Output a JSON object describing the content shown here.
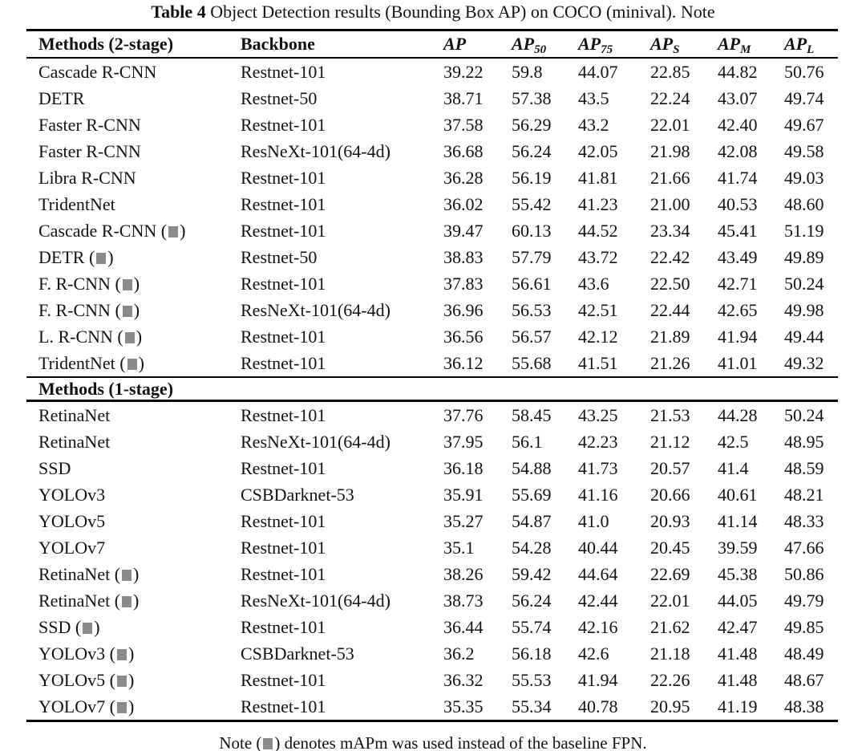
{
  "caption": {
    "label": "Table 4",
    "text": " Object Detection results (Bounding Box AP) on COCO (minival). Note"
  },
  "header": {
    "methods_label": "Methods (2-stage)",
    "backbone_label": "Backbone",
    "metrics": [
      {
        "base": "AP",
        "sub": ""
      },
      {
        "base": "AP",
        "sub": "50"
      },
      {
        "base": "AP",
        "sub": "75"
      },
      {
        "base": "AP",
        "sub": "S"
      },
      {
        "base": "AP",
        "sub": "M"
      },
      {
        "base": "AP",
        "sub": "L"
      }
    ]
  },
  "marker_color": "#8a8a8a",
  "sections": [
    {
      "title": "",
      "rows": [
        {
          "method": "Cascade R-CNN",
          "marked": false,
          "backbone": "Restnet-101",
          "values": [
            "39.22",
            "59.8",
            "44.07",
            "22.85",
            "44.82",
            "50.76"
          ]
        },
        {
          "method": "DETR",
          "marked": false,
          "backbone": "Restnet-50",
          "values": [
            "38.71",
            "57.38",
            "43.5",
            "22.24",
            "43.07",
            "49.74"
          ]
        },
        {
          "method": "Faster R-CNN",
          "marked": false,
          "backbone": "Restnet-101",
          "values": [
            "37.58",
            "56.29",
            "43.2",
            "22.01",
            "42.40",
            "49.67"
          ]
        },
        {
          "method": "Faster R-CNN",
          "marked": false,
          "backbone": "ResNeXt-101(64-4d)",
          "values": [
            "36.68",
            "56.24",
            "42.05",
            "21.98",
            "42.08",
            "49.58"
          ]
        },
        {
          "method": "Libra R-CNN",
          "marked": false,
          "backbone": "Restnet-101",
          "values": [
            "36.28",
            "56.19",
            "41.81",
            "21.66",
            "41.74",
            "49.03"
          ]
        },
        {
          "method": "TridentNet",
          "marked": false,
          "backbone": "Restnet-101",
          "values": [
            "36.02",
            "55.42",
            "41.23",
            "21.00",
            "40.53",
            "48.60"
          ]
        },
        {
          "method": "Cascade R-CNN",
          "marked": true,
          "backbone": "Restnet-101",
          "values": [
            "39.47",
            "60.13",
            "44.52",
            "23.34",
            "45.41",
            "51.19"
          ]
        },
        {
          "method": "DETR",
          "marked": true,
          "backbone": "Restnet-50",
          "values": [
            "38.83",
            "57.79",
            "43.72",
            "22.42",
            "43.49",
            "49.89"
          ]
        },
        {
          "method": "F. R-CNN",
          "marked": true,
          "backbone": "Restnet-101",
          "values": [
            "37.83",
            "56.61",
            "43.6",
            "22.50",
            "42.71",
            "50.24"
          ]
        },
        {
          "method": "F. R-CNN",
          "marked": true,
          "backbone": "ResNeXt-101(64-4d)",
          "values": [
            "36.96",
            "56.53",
            "42.51",
            "22.44",
            "42.65",
            "49.98"
          ]
        },
        {
          "method": "L. R-CNN",
          "marked": true,
          "backbone": "Restnet-101",
          "values": [
            "36.56",
            "56.57",
            "42.12",
            "21.89",
            "41.94",
            "49.44"
          ]
        },
        {
          "method": "TridentNet",
          "marked": true,
          "backbone": "Restnet-101",
          "values": [
            "36.12",
            "55.68",
            "41.51",
            "21.26",
            "41.01",
            "49.32"
          ]
        }
      ]
    },
    {
      "title": "Methods (1-stage)",
      "rows": [
        {
          "method": "RetinaNet",
          "marked": false,
          "backbone": "Restnet-101",
          "values": [
            "37.76",
            "58.45",
            "43.25",
            "21.53",
            "44.28",
            "50.24"
          ]
        },
        {
          "method": "RetinaNet",
          "marked": false,
          "backbone": "ResNeXt-101(64-4d)",
          "values": [
            "37.95",
            "56.1",
            "42.23",
            "21.12",
            "42.5",
            "48.95"
          ]
        },
        {
          "method": "SSD",
          "marked": false,
          "backbone": "Restnet-101",
          "values": [
            "36.18",
            "54.88",
            "41.73",
            "20.57",
            "41.4",
            "48.59"
          ]
        },
        {
          "method": "YOLOv3",
          "marked": false,
          "backbone": "CSBDarknet-53",
          "values": [
            "35.91",
            "55.69",
            "41.16",
            "20.66",
            "40.61",
            "48.21"
          ]
        },
        {
          "method": "YOLOv5",
          "marked": false,
          "backbone": "Restnet-101",
          "values": [
            "35.27",
            "54.87",
            "41.0",
            "20.93",
            "41.14",
            "48.33"
          ]
        },
        {
          "method": "YOLOv7",
          "marked": false,
          "backbone": "Restnet-101",
          "values": [
            "35.1",
            "54.28",
            "40.44",
            "20.45",
            "39.59",
            "47.66"
          ]
        },
        {
          "method": "RetinaNet",
          "marked": true,
          "backbone": "Restnet-101",
          "values": [
            "38.26",
            "59.42",
            "44.64",
            "22.69",
            "45.38",
            "50.86"
          ]
        },
        {
          "method": "RetinaNet",
          "marked": true,
          "backbone": "ResNeXt-101(64-4d)",
          "values": [
            "38.73",
            "56.24",
            "42.44",
            "22.01",
            "44.05",
            "49.79"
          ]
        },
        {
          "method": "SSD",
          "marked": true,
          "backbone": "Restnet-101",
          "values": [
            "36.44",
            "55.74",
            "42.16",
            "21.62",
            "42.47",
            "49.85"
          ]
        },
        {
          "method": "YOLOv3",
          "marked": true,
          "backbone": "CSBDarknet-53",
          "values": [
            "36.2",
            "56.18",
            "42.6",
            "21.18",
            "41.48",
            "48.49"
          ]
        },
        {
          "method": "YOLOv5",
          "marked": true,
          "backbone": "Restnet-101",
          "values": [
            "36.32",
            "55.53",
            "41.94",
            "22.26",
            "41.48",
            "48.67"
          ]
        },
        {
          "method": "YOLOv7",
          "marked": true,
          "backbone": "Restnet-101",
          "values": [
            "35.35",
            "55.34",
            "40.78",
            "20.95",
            "41.19",
            "48.38"
          ]
        }
      ]
    }
  ],
  "note": {
    "pre": "Note (",
    "post": ") denotes mAPm was used instead of the baseline FPN."
  }
}
